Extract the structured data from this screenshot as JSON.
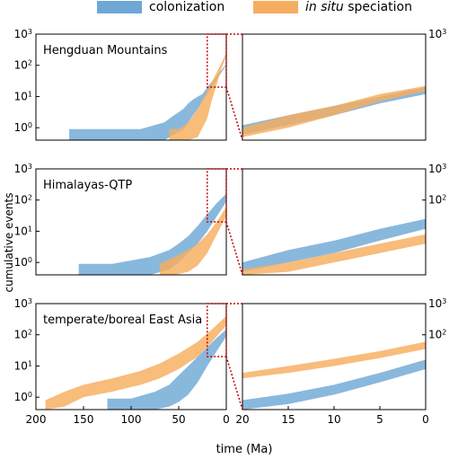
{
  "colors": {
    "colonization": "#6fa8d6",
    "speciation": "#f6ad5e",
    "box": "#c00000"
  },
  "legend": {
    "colonization_label": "colonization",
    "speciation_italic": "in situ",
    "speciation_rest": " speciation"
  },
  "axes_labels": {
    "ylabel": "cumulative events",
    "xlabel": "time (Ma)"
  },
  "chart_data": [
    {
      "type": "area",
      "panel": "Hengduan Mountains, full timescale",
      "title": "Hengduan Mountains",
      "xlim": [
        200,
        0
      ],
      "ylim": [
        0.4,
        1000
      ],
      "yscale": "log",
      "xticks": [],
      "yticks": [
        1,
        10,
        100,
        1000
      ],
      "ytick_labels": [
        "10^0",
        "10^1",
        "10^2",
        "10^3"
      ],
      "series": [
        {
          "name": "colonization",
          "x": [
            165,
            130,
            90,
            65,
            55,
            45,
            40,
            35,
            30,
            25,
            20,
            15,
            10,
            5,
            0
          ],
          "lower": [
            0.4,
            0.4,
            0.4,
            0.4,
            0.6,
            0.9,
            1.5,
            2.5,
            4,
            7,
            12,
            20,
            35,
            60,
            100
          ],
          "upper": [
            0.9,
            0.9,
            0.9,
            1.5,
            2.5,
            4,
            6,
            8,
            10,
            12,
            20,
            30,
            45,
            70,
            110
          ]
        },
        {
          "name": "in situ speciation",
          "x": [
            60,
            50,
            40,
            30,
            25,
            20,
            15,
            10,
            5,
            0
          ],
          "lower": [
            0.4,
            0.4,
            0.4,
            0.5,
            1,
            2,
            8,
            25,
            80,
            200
          ],
          "upper": [
            0.9,
            0.9,
            1.5,
            4,
            8,
            15,
            30,
            60,
            120,
            260
          ]
        }
      ]
    },
    {
      "type": "area",
      "panel": "Hengduan Mountains, 0-20 Ma",
      "xlim": [
        20,
        0
      ],
      "ylim": [
        0.4,
        1000
      ],
      "yscale": "log",
      "xticks": [],
      "yticks": [
        1000
      ],
      "ytick_labels": [
        "10^3"
      ],
      "series": [
        {
          "name": "colonization",
          "x": [
            20,
            15,
            10,
            5,
            0
          ],
          "lower": [
            0.6,
            1.2,
            2.5,
            6,
            12
          ],
          "upper": [
            1.2,
            2.5,
            5,
            10,
            20
          ]
        },
        {
          "name": "in situ speciation",
          "x": [
            20,
            15,
            10,
            5,
            0
          ],
          "lower": [
            0.5,
            1,
            2.5,
            7,
            15
          ],
          "upper": [
            1,
            2.5,
            5,
            12,
            22
          ]
        }
      ]
    },
    {
      "type": "area",
      "panel": "Himalayas-QTP, full timescale",
      "title": "Himalayas-QTP",
      "xlim": [
        200,
        0
      ],
      "ylim": [
        0.4,
        1000
      ],
      "yscale": "log",
      "xticks": [],
      "yticks": [
        1,
        10,
        100,
        1000
      ],
      "ytick_labels": [
        "10^0",
        "10^1",
        "10^2",
        "10^3"
      ],
      "series": [
        {
          "name": "colonization",
          "x": [
            155,
            120,
            80,
            60,
            50,
            40,
            30,
            20,
            10,
            0
          ],
          "lower": [
            0.4,
            0.4,
            0.4,
            0.6,
            1,
            2,
            4,
            10,
            30,
            90
          ],
          "upper": [
            0.9,
            0.9,
            1.5,
            2.5,
            4,
            7,
            15,
            35,
            80,
            160
          ]
        },
        {
          "name": "in situ speciation",
          "x": [
            70,
            55,
            40,
            30,
            20,
            10,
            0
          ],
          "lower": [
            0.4,
            0.4,
            0.5,
            0.8,
            2,
            8,
            30
          ],
          "upper": [
            0.9,
            1.5,
            2.5,
            4,
            8,
            20,
            60
          ]
        }
      ]
    },
    {
      "type": "area",
      "panel": "Himalayas-QTP, 0-20 Ma",
      "xlim": [
        20,
        0
      ],
      "ylim": [
        0.4,
        1000
      ],
      "yscale": "log",
      "xticks": [],
      "yticks": [
        1000,
        100
      ],
      "ytick_labels": [
        "10^3",
        "10^2"
      ],
      "series": [
        {
          "name": "colonization",
          "x": [
            20,
            15,
            10,
            5,
            0
          ],
          "lower": [
            0.5,
            1,
            2,
            5,
            12
          ],
          "upper": [
            1,
            2.5,
            5,
            12,
            25
          ]
        },
        {
          "name": "in situ speciation",
          "x": [
            20,
            15,
            10,
            5,
            0
          ],
          "lower": [
            0.4,
            0.5,
            1,
            2,
            4
          ],
          "upper": [
            0.6,
            1,
            2,
            4,
            8
          ]
        }
      ]
    },
    {
      "type": "area",
      "panel": "temperate/boreal East Asia, full timescale",
      "title": "temperate/boreal East Asia",
      "xlim": [
        200,
        0
      ],
      "ylim": [
        0.4,
        1000
      ],
      "yscale": "log",
      "xticks": [
        200,
        150,
        100,
        50,
        0
      ],
      "xtick_labels": [
        "200",
        "150",
        "100",
        "50",
        "0"
      ],
      "yticks": [
        1,
        10,
        100,
        1000
      ],
      "ytick_labels": [
        "10^0",
        "10^1",
        "10^2",
        "10^3"
      ],
      "series": [
        {
          "name": "colonization",
          "x": [
            125,
            100,
            75,
            60,
            50,
            40,
            30,
            20,
            10,
            0
          ],
          "lower": [
            0.4,
            0.4,
            0.4,
            0.5,
            0.7,
            1.2,
            3,
            10,
            30,
            90
          ],
          "upper": [
            0.9,
            0.9,
            1.5,
            2.5,
            5,
            10,
            20,
            40,
            80,
            150
          ]
        },
        {
          "name": "in situ speciation",
          "x": [
            190,
            170,
            150,
            120,
            90,
            70,
            50,
            30,
            15,
            0
          ],
          "lower": [
            0.4,
            0.5,
            1,
            1.5,
            2.5,
            4,
            8,
            20,
            60,
            200
          ],
          "upper": [
            0.8,
            1.5,
            2.5,
            4,
            7,
            12,
            25,
            60,
            150,
            400
          ]
        }
      ]
    },
    {
      "type": "area",
      "panel": "temperate/boreal East Asia, 0-20 Ma",
      "xlim": [
        20,
        0
      ],
      "ylim": [
        0.4,
        1000
      ],
      "yscale": "log",
      "xticks": [
        20,
        15,
        10,
        5,
        0
      ],
      "xtick_labels": [
        "20",
        "15",
        "10",
        "5",
        "0"
      ],
      "yticks": [
        1000,
        100
      ],
      "ytick_labels": [
        "10^3",
        "10^2"
      ],
      "series": [
        {
          "name": "colonization",
          "x": [
            20,
            15,
            10,
            5,
            0
          ],
          "lower": [
            0.4,
            0.6,
            1.2,
            3,
            8
          ],
          "upper": [
            0.8,
            1.3,
            2.5,
            6,
            16
          ]
        },
        {
          "name": "in situ speciation",
          "x": [
            20,
            15,
            10,
            5,
            0
          ],
          "lower": [
            4,
            6,
            10,
            18,
            35
          ],
          "upper": [
            6,
            10,
            17,
            30,
            60
          ]
        }
      ]
    }
  ]
}
